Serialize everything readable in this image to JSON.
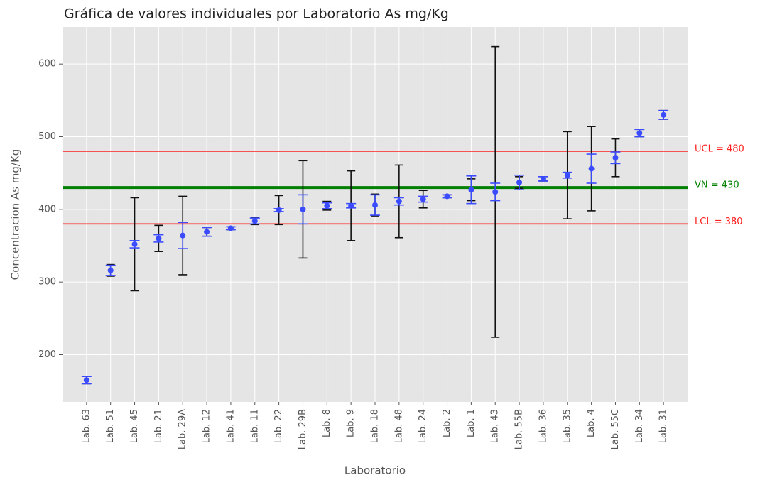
{
  "chart_data": {
    "type": "errorbar",
    "title": "Gráfica de valores individuales por Laboratorio As mg/Kg",
    "x_label": "Laboratorio",
    "y_label": "Concentracion As mg/Kg",
    "categories": [
      "Lab. 63",
      "Lab. 51",
      "Lab. 45",
      "Lab. 21",
      "Lab. 29A",
      "Lab. 12",
      "Lab. 41",
      "Lab. 11",
      "Lab. 22",
      "Lab. 29B",
      "Lab. 8",
      "Lab. 9",
      "Lab. 18",
      "Lab. 48",
      "Lab. 24",
      "Lab. 2",
      "Lab. 1",
      "Lab. 43",
      "Lab. 55B",
      "Lab. 36",
      "Lab. 35",
      "Lab. 4",
      "Lab. 55C",
      "Lab. 34",
      "Lab. 31"
    ],
    "values": [
      165,
      316,
      352,
      360,
      364,
      369,
      374,
      384,
      399,
      400,
      405,
      405,
      406,
      411,
      414,
      418,
      427,
      424,
      437,
      442,
      447,
      456,
      471,
      505,
      530
    ],
    "point_color": "#3b4bff",
    "error_bars": [
      {
        "color": "#111111",
        "errors": [
          5,
          8,
          64,
          18,
          54,
          6,
          2,
          5,
          20,
          67,
          6,
          48,
          15,
          50,
          12,
          2,
          15,
          200,
          8,
          3,
          60,
          58,
          26,
          5,
          6
        ]
      },
      {
        "color": "#3b4bff",
        "errors": [
          5,
          7,
          5,
          5,
          18,
          6,
          2,
          4,
          2,
          20,
          4,
          3,
          14,
          5,
          4,
          2,
          19,
          12,
          10,
          3,
          4,
          20,
          8,
          5,
          6
        ]
      }
    ],
    "reference_lines": [
      {
        "value": 480,
        "label": "UCL = 480",
        "color": "#ff2020",
        "width": 1.6
      },
      {
        "value": 430,
        "label": "VN = 430",
        "color": "#008000",
        "width": 4
      },
      {
        "value": 380,
        "label": "LCL = 380",
        "color": "#ff2020",
        "width": 1.6
      }
    ],
    "xlim": [
      -1,
      25
    ],
    "ylim": [
      135,
      651
    ],
    "yticks": [
      200,
      300,
      400,
      500,
      600
    ],
    "grid": true
  }
}
